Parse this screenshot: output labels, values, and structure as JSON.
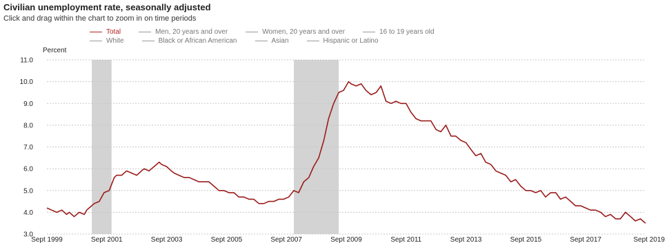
{
  "header": {
    "title": "Civilian unemployment rate, seasonally adjusted",
    "subtitle": "Click and drag within the chart to zoom in on time periods"
  },
  "legend": {
    "rows": [
      [
        {
          "label": "Total",
          "active": true
        },
        {
          "label": "Men, 20 years and over",
          "active": false
        },
        {
          "label": "Women, 20 years and over",
          "active": false
        },
        {
          "label": "16 to 19 years old",
          "active": false
        }
      ],
      [
        {
          "label": "White",
          "active": false
        },
        {
          "label": "Black or African American",
          "active": false
        },
        {
          "label": "Asian",
          "active": false
        },
        {
          "label": "Hispanic or Latino",
          "active": false
        }
      ]
    ]
  },
  "colors": {
    "series": "#9b1b1b",
    "recession": "#d3d3d3",
    "grid": "#c8c8c8"
  },
  "chart_data": {
    "type": "line",
    "title": "Civilian unemployment rate, seasonally adjusted",
    "ylabel": "Percent",
    "xlabel": "",
    "ylim": [
      3.0,
      11.0
    ],
    "yticks": [
      "3.0",
      "4.0",
      "5.0",
      "6.0",
      "7.0",
      "8.0",
      "9.0",
      "10.0",
      "11.0"
    ],
    "xlim": [
      1999.67,
      2019.67
    ],
    "xticks": [
      {
        "x": 1999.67,
        "label": "Sept 1999"
      },
      {
        "x": 2001.67,
        "label": "Sept 2001"
      },
      {
        "x": 2003.67,
        "label": "Sept 2003"
      },
      {
        "x": 2005.67,
        "label": "Sept 2005"
      },
      {
        "x": 2007.67,
        "label": "Sept 2007"
      },
      {
        "x": 2009.67,
        "label": "Sept 2009"
      },
      {
        "x": 2011.67,
        "label": "Sept 2011"
      },
      {
        "x": 2013.67,
        "label": "Sept 2013"
      },
      {
        "x": 2015.67,
        "label": "Sept 2015"
      },
      {
        "x": 2017.67,
        "label": "Sept 2017"
      },
      {
        "x": 2019.67,
        "label": "Sept 2019"
      }
    ],
    "grid": true,
    "recessions": [
      {
        "start": 2001.17,
        "end": 2001.83
      },
      {
        "start": 2007.92,
        "end": 2009.42
      }
    ],
    "series": [
      {
        "name": "Total",
        "points": [
          [
            1999.67,
            4.2
          ],
          [
            1999.83,
            4.1
          ],
          [
            2000.0,
            4.0
          ],
          [
            2000.17,
            4.1
          ],
          [
            2000.33,
            3.9
          ],
          [
            2000.42,
            4.0
          ],
          [
            2000.58,
            3.8
          ],
          [
            2000.75,
            4.0
          ],
          [
            2000.92,
            3.9
          ],
          [
            2001.0,
            4.1
          ],
          [
            2001.08,
            4.2
          ],
          [
            2001.25,
            4.4
          ],
          [
            2001.42,
            4.5
          ],
          [
            2001.58,
            4.9
          ],
          [
            2001.75,
            5.0
          ],
          [
            2001.92,
            5.6
          ],
          [
            2002.0,
            5.7
          ],
          [
            2002.17,
            5.7
          ],
          [
            2002.33,
            5.9
          ],
          [
            2002.5,
            5.8
          ],
          [
            2002.67,
            5.7
          ],
          [
            2002.83,
            5.9
          ],
          [
            2002.92,
            6.0
          ],
          [
            2003.08,
            5.9
          ],
          [
            2003.25,
            6.1
          ],
          [
            2003.42,
            6.3
          ],
          [
            2003.5,
            6.2
          ],
          [
            2003.67,
            6.1
          ],
          [
            2003.83,
            5.9
          ],
          [
            2003.92,
            5.8
          ],
          [
            2004.08,
            5.7
          ],
          [
            2004.25,
            5.6
          ],
          [
            2004.42,
            5.6
          ],
          [
            2004.58,
            5.5
          ],
          [
            2004.75,
            5.4
          ],
          [
            2004.92,
            5.4
          ],
          [
            2005.08,
            5.4
          ],
          [
            2005.25,
            5.2
          ],
          [
            2005.42,
            5.0
          ],
          [
            2005.58,
            5.0
          ],
          [
            2005.75,
            4.9
          ],
          [
            2005.92,
            4.9
          ],
          [
            2006.08,
            4.7
          ],
          [
            2006.25,
            4.7
          ],
          [
            2006.42,
            4.6
          ],
          [
            2006.58,
            4.6
          ],
          [
            2006.75,
            4.4
          ],
          [
            2006.92,
            4.4
          ],
          [
            2007.08,
            4.5
          ],
          [
            2007.25,
            4.5
          ],
          [
            2007.42,
            4.6
          ],
          [
            2007.58,
            4.6
          ],
          [
            2007.75,
            4.7
          ],
          [
            2007.92,
            5.0
          ],
          [
            2008.08,
            4.9
          ],
          [
            2008.25,
            5.4
          ],
          [
            2008.42,
            5.6
          ],
          [
            2008.58,
            6.1
          ],
          [
            2008.75,
            6.5
          ],
          [
            2008.92,
            7.3
          ],
          [
            2009.08,
            8.3
          ],
          [
            2009.25,
            9.0
          ],
          [
            2009.42,
            9.5
          ],
          [
            2009.58,
            9.6
          ],
          [
            2009.75,
            10.0
          ],
          [
            2009.83,
            9.9
          ],
          [
            2010.0,
            9.8
          ],
          [
            2010.17,
            9.9
          ],
          [
            2010.33,
            9.6
          ],
          [
            2010.5,
            9.4
          ],
          [
            2010.67,
            9.5
          ],
          [
            2010.83,
            9.8
          ],
          [
            2011.0,
            9.1
          ],
          [
            2011.17,
            9.0
          ],
          [
            2011.33,
            9.1
          ],
          [
            2011.5,
            9.0
          ],
          [
            2011.67,
            9.0
          ],
          [
            2011.83,
            8.6
          ],
          [
            2012.0,
            8.3
          ],
          [
            2012.17,
            8.2
          ],
          [
            2012.33,
            8.2
          ],
          [
            2012.5,
            8.2
          ],
          [
            2012.67,
            7.8
          ],
          [
            2012.83,
            7.7
          ],
          [
            2013.0,
            8.0
          ],
          [
            2013.17,
            7.5
          ],
          [
            2013.33,
            7.5
          ],
          [
            2013.5,
            7.3
          ],
          [
            2013.67,
            7.2
          ],
          [
            2013.83,
            6.9
          ],
          [
            2014.0,
            6.6
          ],
          [
            2014.17,
            6.7
          ],
          [
            2014.33,
            6.3
          ],
          [
            2014.5,
            6.2
          ],
          [
            2014.67,
            5.9
          ],
          [
            2014.83,
            5.8
          ],
          [
            2015.0,
            5.7
          ],
          [
            2015.17,
            5.4
          ],
          [
            2015.33,
            5.5
          ],
          [
            2015.5,
            5.2
          ],
          [
            2015.67,
            5.0
          ],
          [
            2015.83,
            5.0
          ],
          [
            2016.0,
            4.9
          ],
          [
            2016.17,
            5.0
          ],
          [
            2016.33,
            4.7
          ],
          [
            2016.5,
            4.9
          ],
          [
            2016.67,
            4.9
          ],
          [
            2016.83,
            4.6
          ],
          [
            2017.0,
            4.7
          ],
          [
            2017.17,
            4.5
          ],
          [
            2017.33,
            4.3
          ],
          [
            2017.5,
            4.3
          ],
          [
            2017.67,
            4.2
          ],
          [
            2017.83,
            4.1
          ],
          [
            2018.0,
            4.1
          ],
          [
            2018.17,
            4.0
          ],
          [
            2018.33,
            3.8
          ],
          [
            2018.5,
            3.9
          ],
          [
            2018.67,
            3.7
          ],
          [
            2018.83,
            3.7
          ],
          [
            2019.0,
            4.0
          ],
          [
            2019.17,
            3.8
          ],
          [
            2019.33,
            3.6
          ],
          [
            2019.5,
            3.7
          ],
          [
            2019.58,
            3.6
          ],
          [
            2019.67,
            3.5
          ]
        ]
      }
    ]
  }
}
